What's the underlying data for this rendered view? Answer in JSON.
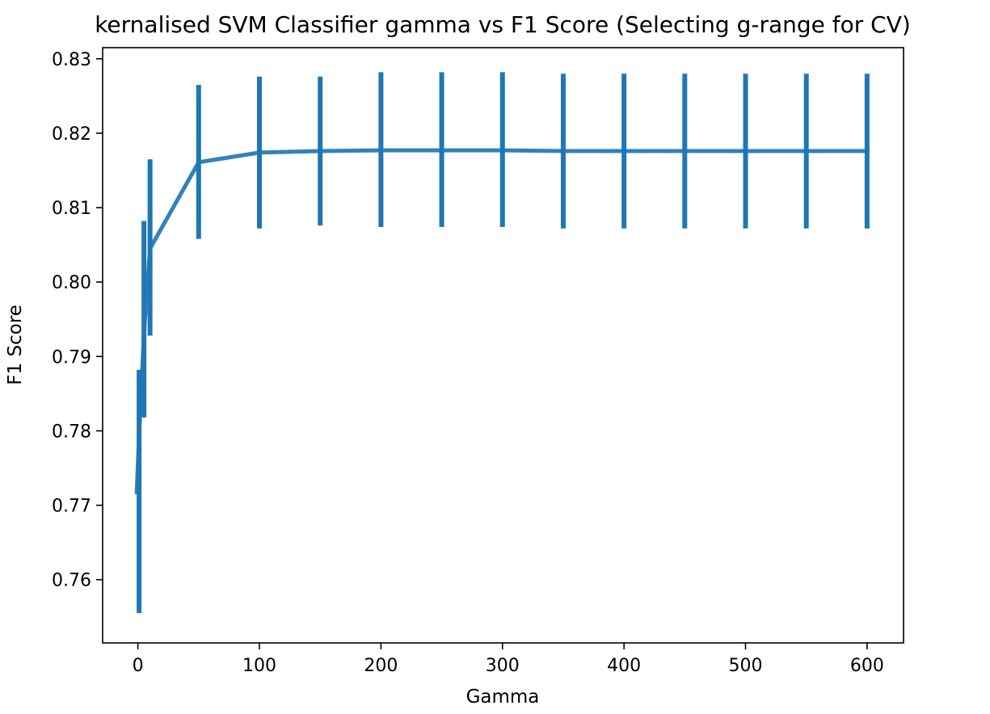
{
  "chart_data": {
    "type": "line",
    "title": "kernalised SVM Classifier gamma vs F1 Score (Selecting g-range for CV)",
    "xlabel": "Gamma",
    "ylabel": "F1 Score",
    "xlim": [
      -29,
      630
    ],
    "ylim": [
      0.7515,
      0.8315
    ],
    "x_ticks": [
      0,
      100,
      200,
      300,
      400,
      500,
      600
    ],
    "x_tick_labels": [
      "0",
      "100",
      "200",
      "300",
      "400",
      "500",
      "600"
    ],
    "y_ticks": [
      0.76,
      0.77,
      0.78,
      0.79,
      0.8,
      0.81,
      0.82,
      0.83
    ],
    "y_tick_labels": [
      "0.76",
      "0.77",
      "0.78",
      "0.79",
      "0.80",
      "0.81",
      "0.82",
      "0.83"
    ],
    "grid": false,
    "series": [
      {
        "color": "#1f77b4",
        "x": [
          -1,
          1,
          5,
          10,
          50,
          100,
          150,
          200,
          250,
          300,
          350,
          400,
          450,
          500,
          550,
          600
        ],
        "y": [
          0.7715,
          0.7795,
          0.793,
          0.8045,
          0.8161,
          0.8174,
          0.8176,
          0.8177,
          0.8177,
          0.8177,
          0.8176,
          0.8176,
          0.8176,
          0.8176,
          0.8176,
          0.8176
        ],
        "yerr_low": [
          0.7715,
          0.7555,
          0.7818,
          0.7928,
          0.8058,
          0.8072,
          0.8076,
          0.8074,
          0.8074,
          0.8074,
          0.8072,
          0.8072,
          0.8072,
          0.8072,
          0.8072,
          0.8072
        ],
        "yerr_high": [
          0.7715,
          0.7882,
          0.8082,
          0.8165,
          0.8265,
          0.8276,
          0.8276,
          0.8282,
          0.8282,
          0.8282,
          0.828,
          0.828,
          0.828,
          0.828,
          0.828,
          0.828
        ]
      }
    ]
  }
}
